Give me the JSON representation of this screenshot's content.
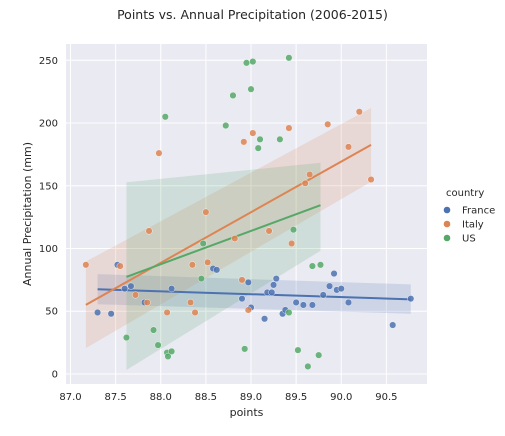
{
  "chart_data": {
    "type": "scatter",
    "title": "Points vs. Annual Precipitation (2006-2015)",
    "xlabel": "points",
    "ylabel": "Annual Precipitation (mm)",
    "xlim": [
      86.95,
      90.95
    ],
    "ylim": [
      -8,
      263
    ],
    "xticks": [
      87.0,
      87.5,
      88.0,
      88.5,
      89.0,
      89.5,
      90.0,
      90.5
    ],
    "xtick_labels": [
      "87.0",
      "87.5",
      "88.0",
      "88.5",
      "89.0",
      "89.5",
      "90.0",
      "90.5"
    ],
    "yticks": [
      0,
      50,
      100,
      150,
      200,
      250
    ],
    "ytick_labels": [
      "0",
      "50",
      "100",
      "150",
      "200",
      "250"
    ],
    "grid": true,
    "legend": {
      "title": "country",
      "placement": "right"
    },
    "series": [
      {
        "name": "France",
        "color": "#4c72b0",
        "points": [
          [
            87.3,
            49
          ],
          [
            87.45,
            48
          ],
          [
            87.52,
            87
          ],
          [
            87.6,
            68
          ],
          [
            87.67,
            70
          ],
          [
            87.82,
            57
          ],
          [
            88.12,
            68
          ],
          [
            88.58,
            84
          ],
          [
            88.62,
            83
          ],
          [
            88.9,
            60
          ],
          [
            88.97,
            73
          ],
          [
            89.0,
            53
          ],
          [
            89.15,
            44
          ],
          [
            89.18,
            65
          ],
          [
            89.23,
            65
          ],
          [
            89.25,
            71
          ],
          [
            89.28,
            76
          ],
          [
            89.35,
            48
          ],
          [
            89.38,
            51
          ],
          [
            89.5,
            57
          ],
          [
            89.58,
            55
          ],
          [
            89.68,
            55
          ],
          [
            89.8,
            63
          ],
          [
            89.87,
            70
          ],
          [
            89.92,
            80
          ],
          [
            89.95,
            67
          ],
          [
            90.0,
            68
          ],
          [
            90.08,
            57
          ],
          [
            90.57,
            39
          ],
          [
            90.77,
            60
          ]
        ],
        "trend": {
          "x": [
            87.3,
            90.77
          ],
          "y": [
            67.5,
            59.5
          ],
          "ci_low": [
            55.6,
            48
          ],
          "ci_high": [
            79.6,
            71.4
          ]
        }
      },
      {
        "name": "Italy",
        "color": "#dd8452",
        "points": [
          [
            87.17,
            87
          ],
          [
            87.55,
            86
          ],
          [
            87.72,
            63
          ],
          [
            87.85,
            57
          ],
          [
            87.87,
            114
          ],
          [
            87.98,
            176
          ],
          [
            88.07,
            49
          ],
          [
            88.33,
            57
          ],
          [
            88.35,
            87
          ],
          [
            88.38,
            49
          ],
          [
            88.5,
            129
          ],
          [
            88.52,
            89
          ],
          [
            88.82,
            108
          ],
          [
            88.9,
            75
          ],
          [
            88.92,
            185
          ],
          [
            88.97,
            51
          ],
          [
            89.02,
            192
          ],
          [
            89.2,
            114
          ],
          [
            89.42,
            196
          ],
          [
            89.45,
            104
          ],
          [
            89.6,
            152
          ],
          [
            89.65,
            159
          ],
          [
            89.85,
            199
          ],
          [
            90.08,
            181
          ],
          [
            90.2,
            209
          ],
          [
            90.33,
            155
          ]
        ],
        "trend": {
          "x": [
            87.17,
            90.33
          ],
          "y": [
            55.1,
            182.6
          ],
          "ci_low": [
            20.6,
            153.2
          ],
          "ci_high": [
            89.6,
            212
          ]
        }
      },
      {
        "name": "US",
        "color": "#55a868",
        "points": [
          [
            87.62,
            29
          ],
          [
            87.92,
            35
          ],
          [
            87.97,
            23
          ],
          [
            88.05,
            205
          ],
          [
            88.07,
            17
          ],
          [
            88.08,
            14
          ],
          [
            88.12,
            18
          ],
          [
            88.45,
            76
          ],
          [
            88.47,
            104
          ],
          [
            88.72,
            198
          ],
          [
            88.8,
            222
          ],
          [
            88.93,
            20
          ],
          [
            88.95,
            248
          ],
          [
            89.0,
            227
          ],
          [
            89.02,
            249
          ],
          [
            89.08,
            180
          ],
          [
            89.1,
            187
          ],
          [
            89.32,
            187
          ],
          [
            89.42,
            49
          ],
          [
            89.42,
            252
          ],
          [
            89.47,
            115
          ],
          [
            89.52,
            19
          ],
          [
            89.63,
            6
          ],
          [
            89.68,
            86
          ],
          [
            89.75,
            15
          ],
          [
            89.77,
            87
          ]
        ],
        "trend": {
          "x": [
            87.62,
            89.77
          ],
          "y": [
            77.4,
            134.5
          ],
          "ci_low": [
            3.2,
            98.2
          ],
          "ci_high": [
            152.8,
            168.3
          ]
        }
      }
    ]
  }
}
